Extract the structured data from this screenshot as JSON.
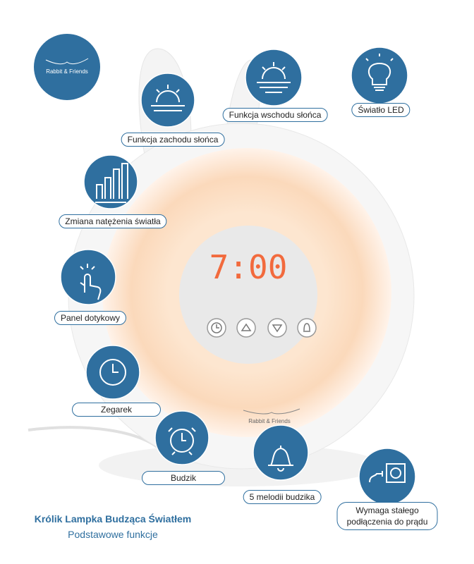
{
  "logo": {
    "text": "Rabbit & Friends"
  },
  "lamp": {
    "display": "7:00",
    "brand": "Rabbit & Friends"
  },
  "features": [
    {
      "label": "Funkcja zachodu słońca"
    },
    {
      "label": "Funkcja wschodu słońca"
    },
    {
      "label": "Światło LED"
    },
    {
      "label": "Zmiana natężenia światła"
    },
    {
      "label": "Panel dotykowy"
    },
    {
      "label": "Zegarek"
    },
    {
      "label": "Budzik"
    },
    {
      "label": "5 melodii budzika"
    },
    {
      "label": "Wymaga stałego podłączenia do prądu"
    }
  ],
  "footer": {
    "title": "Królik Lampka Budząca Światłem",
    "subtitle": "Podstawowe funkcje"
  }
}
